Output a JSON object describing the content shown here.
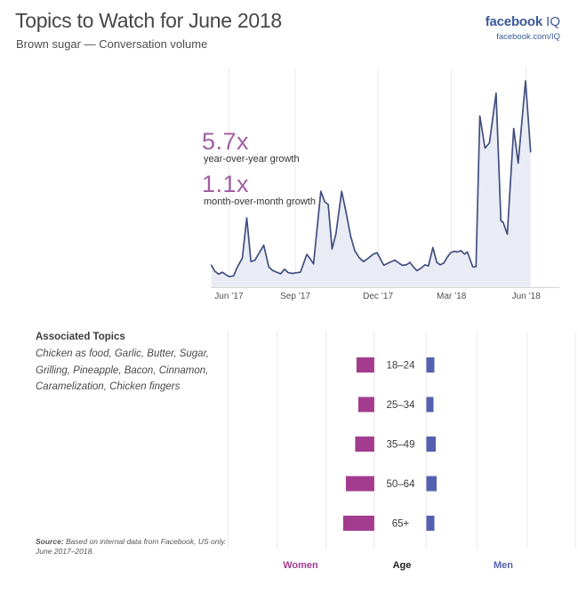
{
  "header": {
    "title": "Topics to Watch for June 2018",
    "subtitle": "Brown sugar — Conversation volume",
    "brand": "facebook",
    "brand_suffix": "IQ",
    "brand_url": "facebook.com/IQ"
  },
  "growth": {
    "yoy_value": "5.7x",
    "yoy_label": "year-over-year growth",
    "mom_value": "1.1x",
    "mom_label": "month-over-month growth"
  },
  "colors": {
    "accent_purple": "#a25fa3",
    "line": "#414f80",
    "fill": "#eaecf5",
    "grid": "#e9e9e9",
    "axis": "#d6d6d6",
    "women": "#a33c8f",
    "men": "#5560ae",
    "brand_blue": "#3b5998",
    "tick_text": "#4f4f4f",
    "age_text": "#3b3b3b"
  },
  "chart_data": [
    {
      "type": "area",
      "title": "Brown sugar — Conversation volume",
      "x_ticks": [
        "Jun ’17",
        "Sep ’17",
        "Dec ’17",
        "Mar ’18",
        "Jun ’18"
      ],
      "tick_positions": [
        5.5,
        26.3,
        52.2,
        75.2,
        98.6
      ],
      "x_unit": "timeline, Jun 2017 – Jun 2018 (0–100)",
      "y_unit": "relative conversation volume (peak = 100)",
      "ylim": [
        0,
        100
      ],
      "grid": "vertical-only",
      "points": [
        [
          0,
          10.8
        ],
        [
          1.1,
          7.9
        ],
        [
          2.3,
          6.5
        ],
        [
          3.4,
          7.5
        ],
        [
          4.6,
          6.2
        ],
        [
          5.7,
          5.3
        ],
        [
          7.0,
          5.7
        ],
        [
          8.1,
          9.8
        ],
        [
          9.7,
          14.3
        ],
        [
          11.1,
          33.7
        ],
        [
          12.4,
          12.6
        ],
        [
          13.6,
          13.2
        ],
        [
          16.4,
          20.5
        ],
        [
          18.0,
          10
        ],
        [
          19.2,
          8.3
        ],
        [
          20.4,
          7.5
        ],
        [
          21.7,
          6.7
        ],
        [
          22.9,
          8.9
        ],
        [
          24.1,
          7.2
        ],
        [
          25.4,
          6.9
        ],
        [
          26.6,
          7.2
        ],
        [
          27.9,
          7.5
        ],
        [
          29.9,
          16.1
        ],
        [
          30.8,
          14.3
        ],
        [
          32.0,
          11.5
        ],
        [
          34.3,
          46.6
        ],
        [
          35.5,
          41.6
        ],
        [
          36.6,
          40.2
        ],
        [
          37.8,
          18.7
        ],
        [
          39.0,
          25.8
        ],
        [
          40.8,
          46.6
        ],
        [
          42.1,
          37.3
        ],
        [
          43.6,
          25.1
        ],
        [
          44.9,
          17.9
        ],
        [
          46.4,
          14.3
        ],
        [
          47.7,
          12.6
        ],
        [
          49.2,
          14.3
        ],
        [
          50.6,
          16.1
        ],
        [
          51.9,
          16.9
        ],
        [
          54.0,
          10.8
        ],
        [
          56.0,
          12.3
        ],
        [
          57.5,
          13.3
        ],
        [
          58.7,
          11.9
        ],
        [
          59.8,
          10.8
        ],
        [
          61.1,
          11.0
        ],
        [
          62.2,
          12.2
        ],
        [
          63.3,
          10.0
        ],
        [
          64.4,
          8.2
        ],
        [
          65.6,
          9.3
        ],
        [
          66.9,
          11.0
        ],
        [
          68.0,
          10.5
        ],
        [
          69.4,
          19.4
        ],
        [
          70.6,
          12.2
        ],
        [
          71.7,
          11.0
        ],
        [
          72.8,
          11.9
        ],
        [
          73.7,
          14.3
        ],
        [
          74.9,
          16.8
        ],
        [
          76.1,
          17.6
        ],
        [
          77.0,
          17.2
        ],
        [
          78.2,
          17.9
        ],
        [
          79.3,
          16.2
        ],
        [
          80.2,
          17.2
        ],
        [
          81.9,
          10.0
        ],
        [
          82.9,
          10.2
        ],
        [
          84.1,
          83
        ],
        [
          85.7,
          67.5
        ],
        [
          87.1,
          70
        ],
        [
          89.2,
          94
        ],
        [
          90.7,
          32.3
        ],
        [
          91.4,
          31.6
        ],
        [
          92.7,
          25.8
        ],
        [
          94.7,
          77
        ],
        [
          96.1,
          60.2
        ],
        [
          98.4,
          100
        ],
        [
          100,
          65.7
        ]
      ]
    },
    {
      "type": "butterfly-bar",
      "categories": [
        "18–24",
        "25–34",
        "35–49",
        "50–64",
        "65+"
      ],
      "series": [
        {
          "name": "Women",
          "values": [
            20,
            18,
            21.5,
            32,
            35
          ],
          "color": "#a33c8f",
          "side": "left"
        },
        {
          "name": "Men",
          "values": [
            9,
            8,
            10.5,
            11.5,
            9
          ],
          "color": "#5560ae",
          "side": "right"
        }
      ],
      "axis_label": "Age",
      "value_unit": "relative conversation share"
    }
  ],
  "associated_topics": {
    "heading": "Associated Topics",
    "topics": "Chicken as food, Garlic, Butter, Sugar,\nGrilling, Pineapple, Bacon, Cinnamon,\nCaramelization, Chicken fingers"
  },
  "source": {
    "label": "Source:",
    "rest": " Based on internal data from Facebook, US only.",
    "line2": "June 2017–2018."
  }
}
